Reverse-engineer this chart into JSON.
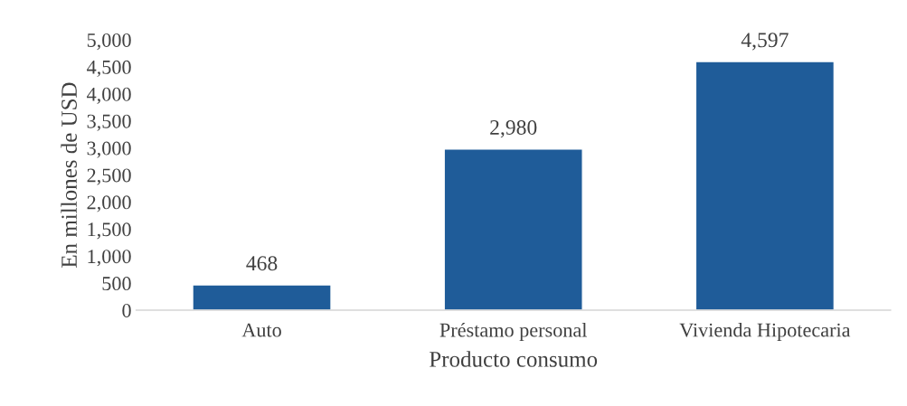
{
  "chart_data": {
    "type": "bar",
    "xlabel": "Producto consumo",
    "ylabel": "En millones de USD",
    "categories": [
      "Auto",
      "Préstamo personal",
      "Vivienda Hipotecaria"
    ],
    "values": [
      468,
      2980,
      4597
    ],
    "color": "#1f5c99",
    "value_labels": [
      "468",
      "2,980",
      "4,597"
    ],
    "ylim": [
      0,
      5000
    ],
    "yticks": [
      0,
      500,
      {
        "value": 1000,
        "label": "1,000"
      },
      {
        "value": 1500,
        "label": "1,500"
      },
      {
        "value": 2000,
        "label": "2,000"
      },
      {
        "value": 2500,
        "label": "2,500"
      },
      {
        "value": 3000,
        "label": "3,000"
      },
      {
        "value": 3500,
        "label": "3,500"
      },
      {
        "value": 4000,
        "label": "4,000"
      },
      {
        "value": 4500,
        "label": "4,500"
      },
      {
        "value": 5000,
        "label": "5,000"
      }
    ],
    "grid": false,
    "legend": false
  }
}
